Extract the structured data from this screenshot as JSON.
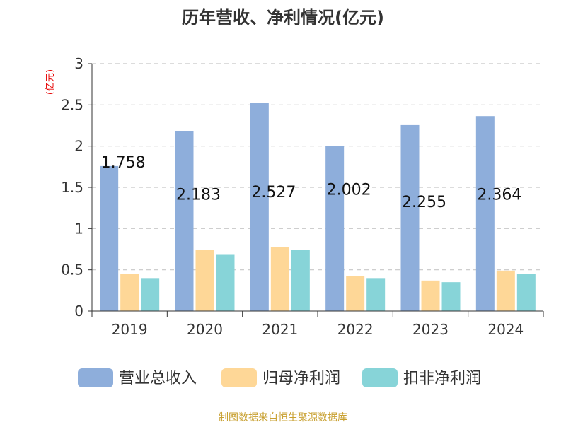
{
  "chart_data": {
    "type": "bar",
    "title": "历年营收、净利情况(亿元)",
    "ylabel": "(亿元)",
    "ylim": [
      0,
      3
    ],
    "yticks": [
      0,
      0.5,
      1,
      1.5,
      2,
      2.5,
      3
    ],
    "grid": true,
    "legend_position": "bottom",
    "categories": [
      "2019",
      "2020",
      "2021",
      "2022",
      "2023",
      "2024"
    ],
    "series": [
      {
        "name": "营业总收入",
        "color": "#8eaedb",
        "values": [
          1.758,
          2.183,
          2.527,
          2.002,
          2.255,
          2.364
        ],
        "labels": [
          "1.758",
          "2.183",
          "2.527",
          "2.002",
          "2.255",
          "2.364"
        ]
      },
      {
        "name": "归母净利润",
        "color": "#fed797",
        "values": [
          0.45,
          0.74,
          0.78,
          0.42,
          0.37,
          0.49
        ]
      },
      {
        "name": "扣非净利润",
        "color": "#87d4d8",
        "values": [
          0.4,
          0.69,
          0.74,
          0.4,
          0.35,
          0.45
        ]
      }
    ],
    "source": "制图数据来自恒生聚源数据库"
  }
}
